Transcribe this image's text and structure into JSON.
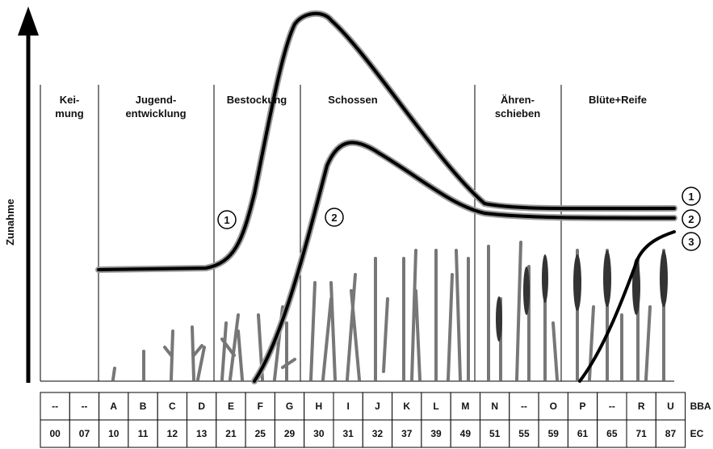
{
  "y_axis": {
    "label": "Zunahme"
  },
  "stages": [
    {
      "lines": [
        "Kei-",
        "mung"
      ]
    },
    {
      "lines": [
        "Jugend-",
        "entwicklung"
      ]
    },
    {
      "lines": [
        "Bestockung"
      ]
    },
    {
      "lines": [
        "Schossen"
      ]
    },
    {
      "lines": [
        "Ähren-",
        "schieben"
      ]
    },
    {
      "lines": [
        "Blüte+Reife"
      ]
    }
  ],
  "curve_markers": {
    "inline": [
      "1",
      "2"
    ],
    "right": [
      "1",
      "2",
      "3"
    ]
  },
  "table": {
    "rows": [
      {
        "label": "BBA",
        "cells": [
          "--",
          "--",
          "A",
          "B",
          "C",
          "D",
          "E",
          "F",
          "G",
          "H",
          "I",
          "J",
          "K",
          "L",
          "M",
          "N",
          "--",
          "O",
          "P",
          "--",
          "R",
          "U"
        ]
      },
      {
        "label": "EC",
        "cells": [
          "00",
          "07",
          "10",
          "11",
          "12",
          "13",
          "21",
          "25",
          "29",
          "30",
          "31",
          "32",
          "37",
          "39",
          "49",
          "51",
          "55",
          "59",
          "61",
          "65",
          "71",
          "87"
        ]
      }
    ]
  }
}
